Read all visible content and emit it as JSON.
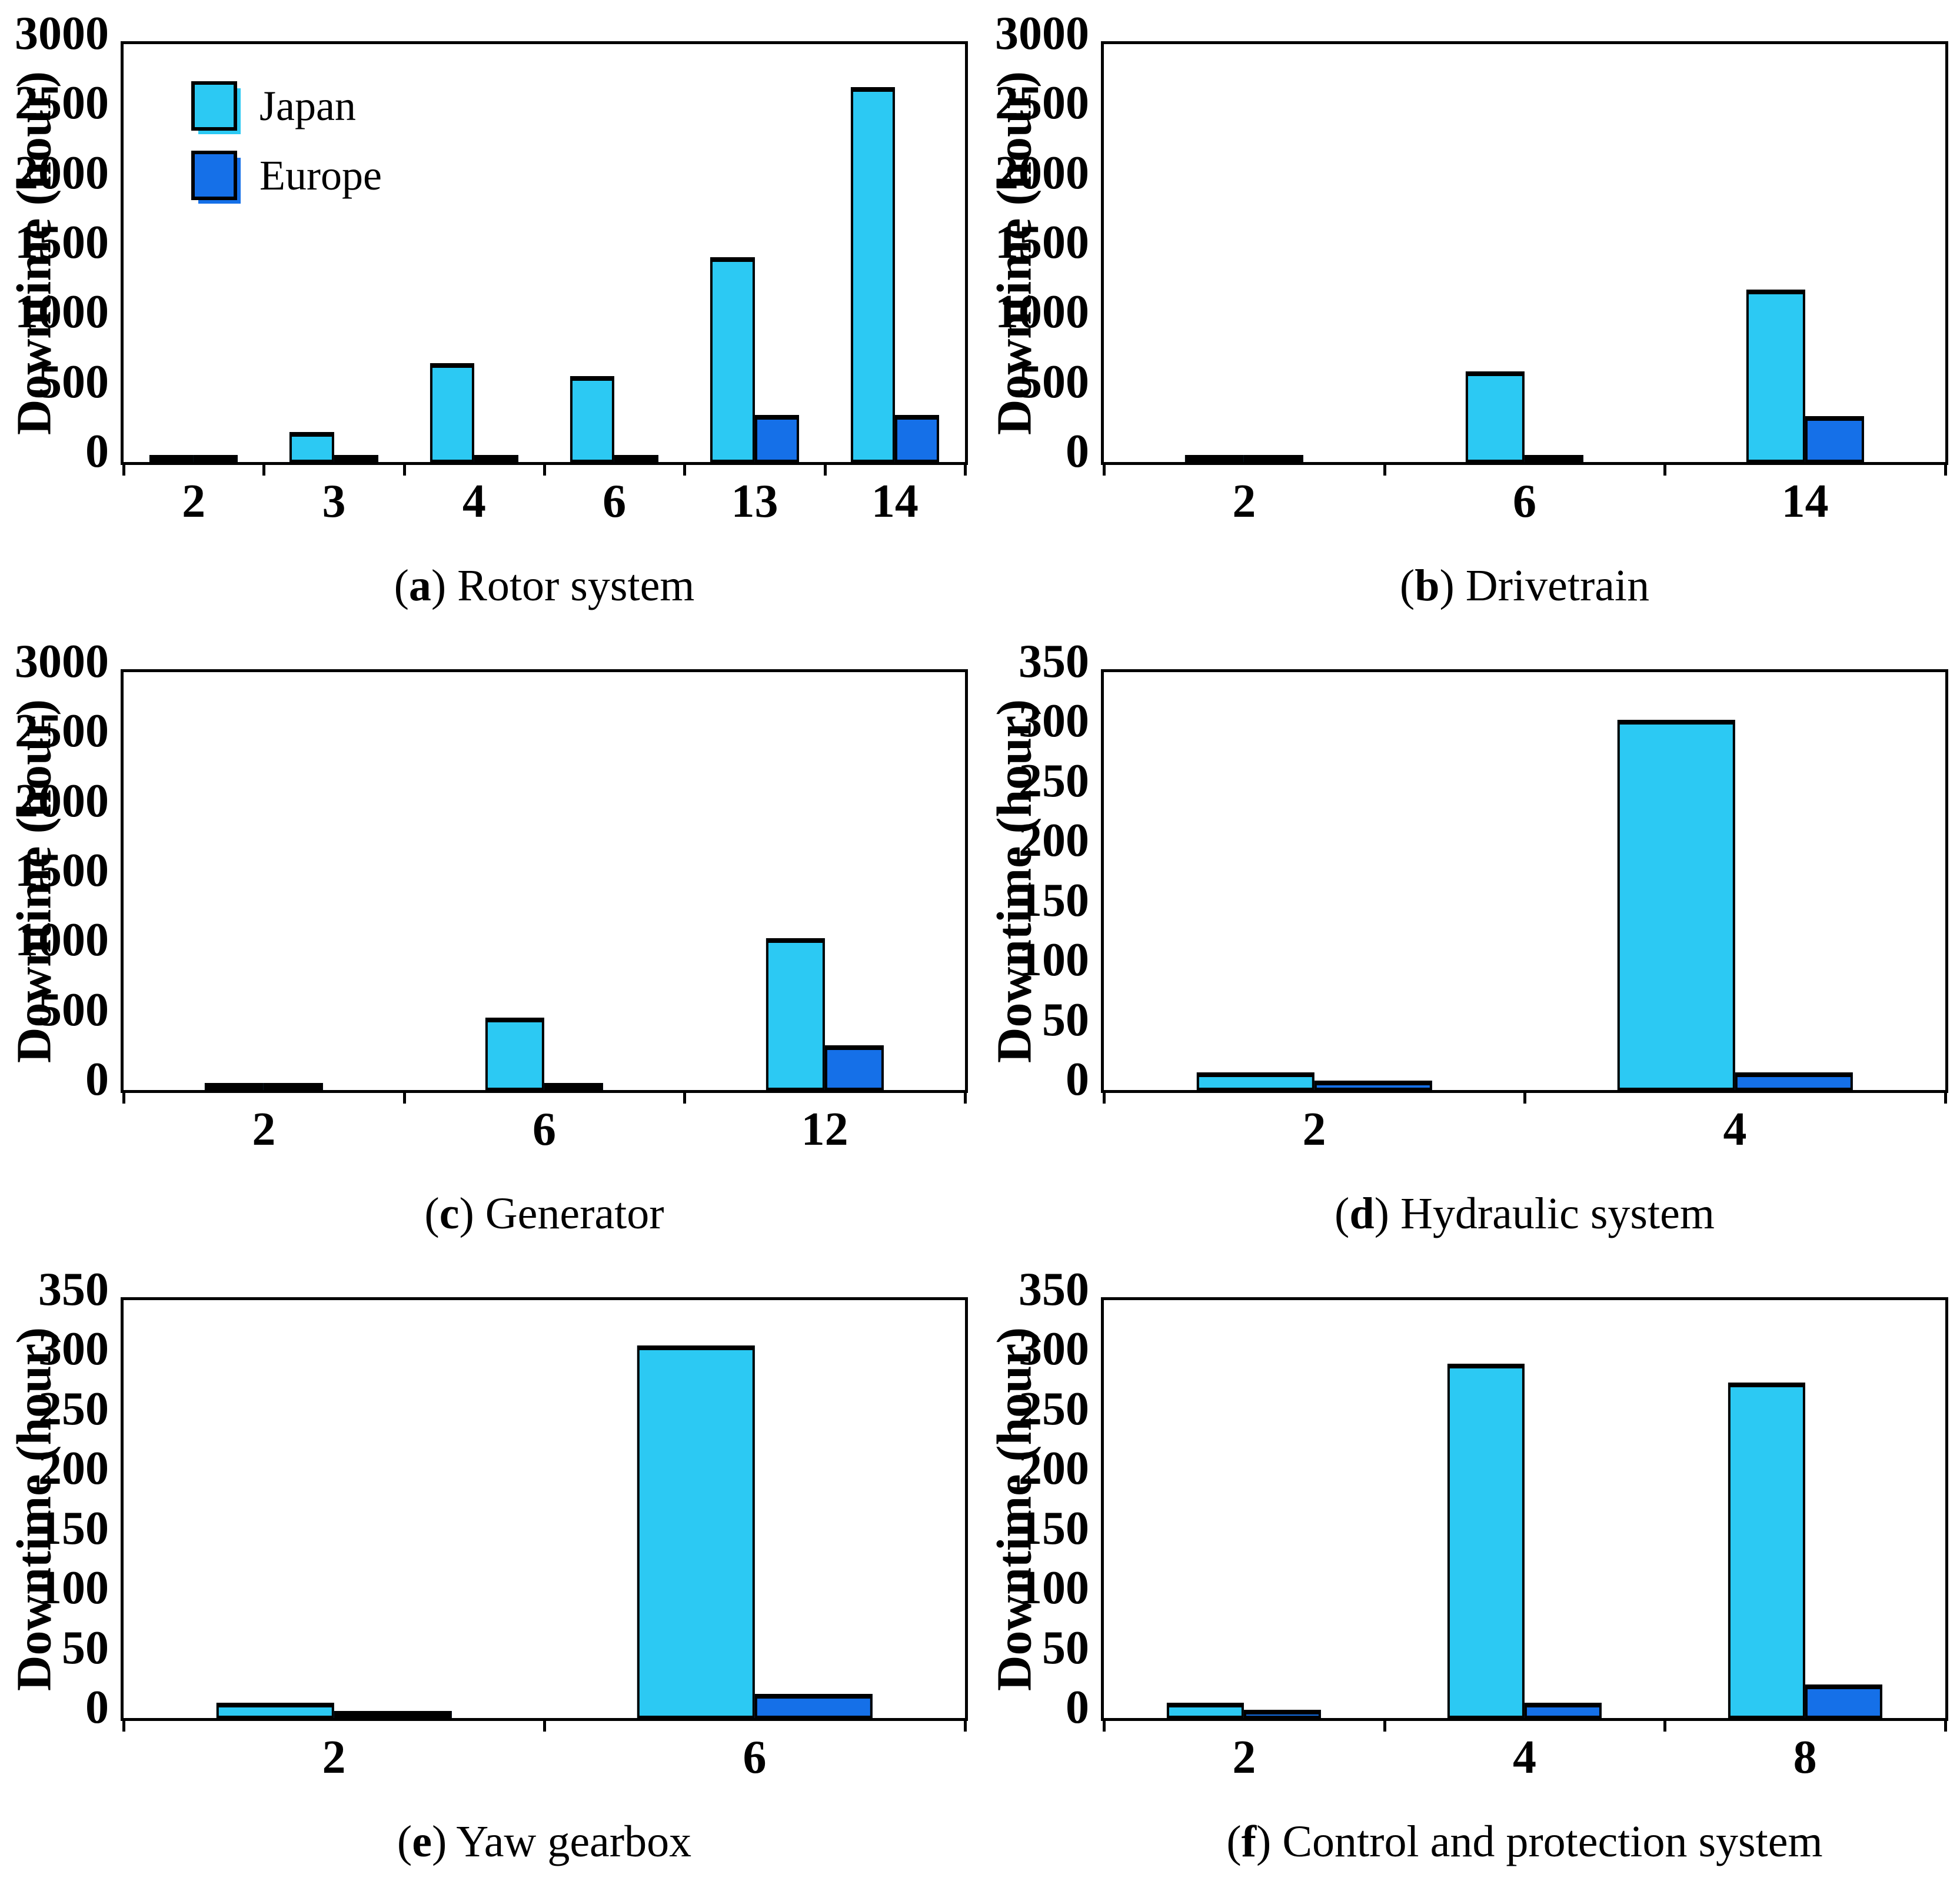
{
  "figure": {
    "ylabel": "Downtime (hour)",
    "background": "#FFFFFF",
    "axis_color": "#000000",
    "legend": {
      "position": "upper-left-of-first-subplot",
      "entries": [
        {
          "label": "Japan",
          "color": "#2CC9F3"
        },
        {
          "label": "Europe",
          "color": "#1570E8"
        }
      ]
    }
  },
  "chart_data": [
    {
      "type": "bar",
      "key": "a",
      "caption_letter": "a",
      "title": "Rotor system",
      "categories": [
        "2",
        "3",
        "4",
        "6",
        "13",
        "14"
      ],
      "series": [
        {
          "name": "Japan",
          "color": "#2CC9F3",
          "values": [
            15,
            215,
            710,
            615,
            1470,
            2690
          ]
        },
        {
          "name": "Europe",
          "color": "#1570E8",
          "values": [
            12,
            18,
            18,
            45,
            340,
            340
          ]
        }
      ],
      "ylabel": "Downtime (hour)",
      "ylim": [
        0,
        3000
      ],
      "yticks": [
        0,
        500,
        1000,
        1500,
        2000,
        2500,
        3000
      ],
      "grid": false,
      "show_legend": true
    },
    {
      "type": "bar",
      "key": "b",
      "caption_letter": "b",
      "title": "Drivetrain",
      "categories": [
        "2",
        "6",
        "14"
      ],
      "series": [
        {
          "name": "Japan",
          "color": "#2CC9F3",
          "values": [
            10,
            650,
            1240
          ]
        },
        {
          "name": "Europe",
          "color": "#1570E8",
          "values": [
            8,
            30,
            330
          ]
        }
      ],
      "ylabel": "Downtime (hour)",
      "ylim": [
        0,
        3000
      ],
      "yticks": [
        0,
        500,
        1000,
        1500,
        2000,
        2500,
        3000
      ],
      "grid": false,
      "show_legend": false
    },
    {
      "type": "bar",
      "key": "c",
      "caption_letter": "c",
      "title": "Generator",
      "categories": [
        "2",
        "6",
        "12"
      ],
      "series": [
        {
          "name": "Japan",
          "color": "#2CC9F3",
          "values": [
            15,
            520,
            1090
          ]
        },
        {
          "name": "Europe",
          "color": "#1570E8",
          "values": [
            10,
            35,
            320
          ]
        }
      ],
      "ylabel": "Downtime (hour)",
      "ylim": [
        0,
        3000
      ],
      "yticks": [
        0,
        500,
        1000,
        1500,
        2000,
        2500,
        3000
      ],
      "grid": false,
      "show_legend": false
    },
    {
      "type": "bar",
      "key": "d",
      "caption_letter": "d",
      "title": "Hydraulic system",
      "categories": [
        "2",
        "4"
      ],
      "series": [
        {
          "name": "Japan",
          "color": "#2CC9F3",
          "values": [
            15,
            310
          ]
        },
        {
          "name": "Europe",
          "color": "#1570E8",
          "values": [
            8,
            15
          ]
        }
      ],
      "ylabel": "Downtime (hour)",
      "ylim": [
        0,
        350
      ],
      "yticks": [
        0,
        50,
        100,
        150,
        200,
        250,
        300,
        350
      ],
      "grid": false,
      "show_legend": false
    },
    {
      "type": "bar",
      "key": "e",
      "caption_letter": "e",
      "title": "Yaw gearbox",
      "categories": [
        "2",
        "6"
      ],
      "series": [
        {
          "name": "Japan",
          "color": "#2CC9F3",
          "values": [
            13,
            312
          ]
        },
        {
          "name": "Europe",
          "color": "#1570E8",
          "values": [
            6,
            20
          ]
        }
      ],
      "ylabel": "Downtime (hour)",
      "ylim": [
        0,
        350
      ],
      "yticks": [
        0,
        50,
        100,
        150,
        200,
        250,
        300,
        350
      ],
      "grid": false,
      "show_legend": false
    },
    {
      "type": "bar",
      "key": "f",
      "caption_letter": "f",
      "title": "Control and protection system",
      "categories": [
        "2",
        "4",
        "8"
      ],
      "series": [
        {
          "name": "Japan",
          "color": "#2CC9F3",
          "values": [
            13,
            297,
            281
          ]
        },
        {
          "name": "Europe",
          "color": "#1570E8",
          "values": [
            7,
            13,
            28
          ]
        }
      ],
      "ylabel": "Downtime (hour)",
      "ylim": [
        0,
        350
      ],
      "yticks": [
        0,
        50,
        100,
        150,
        200,
        250,
        300,
        350
      ],
      "grid": false,
      "show_legend": false
    }
  ]
}
